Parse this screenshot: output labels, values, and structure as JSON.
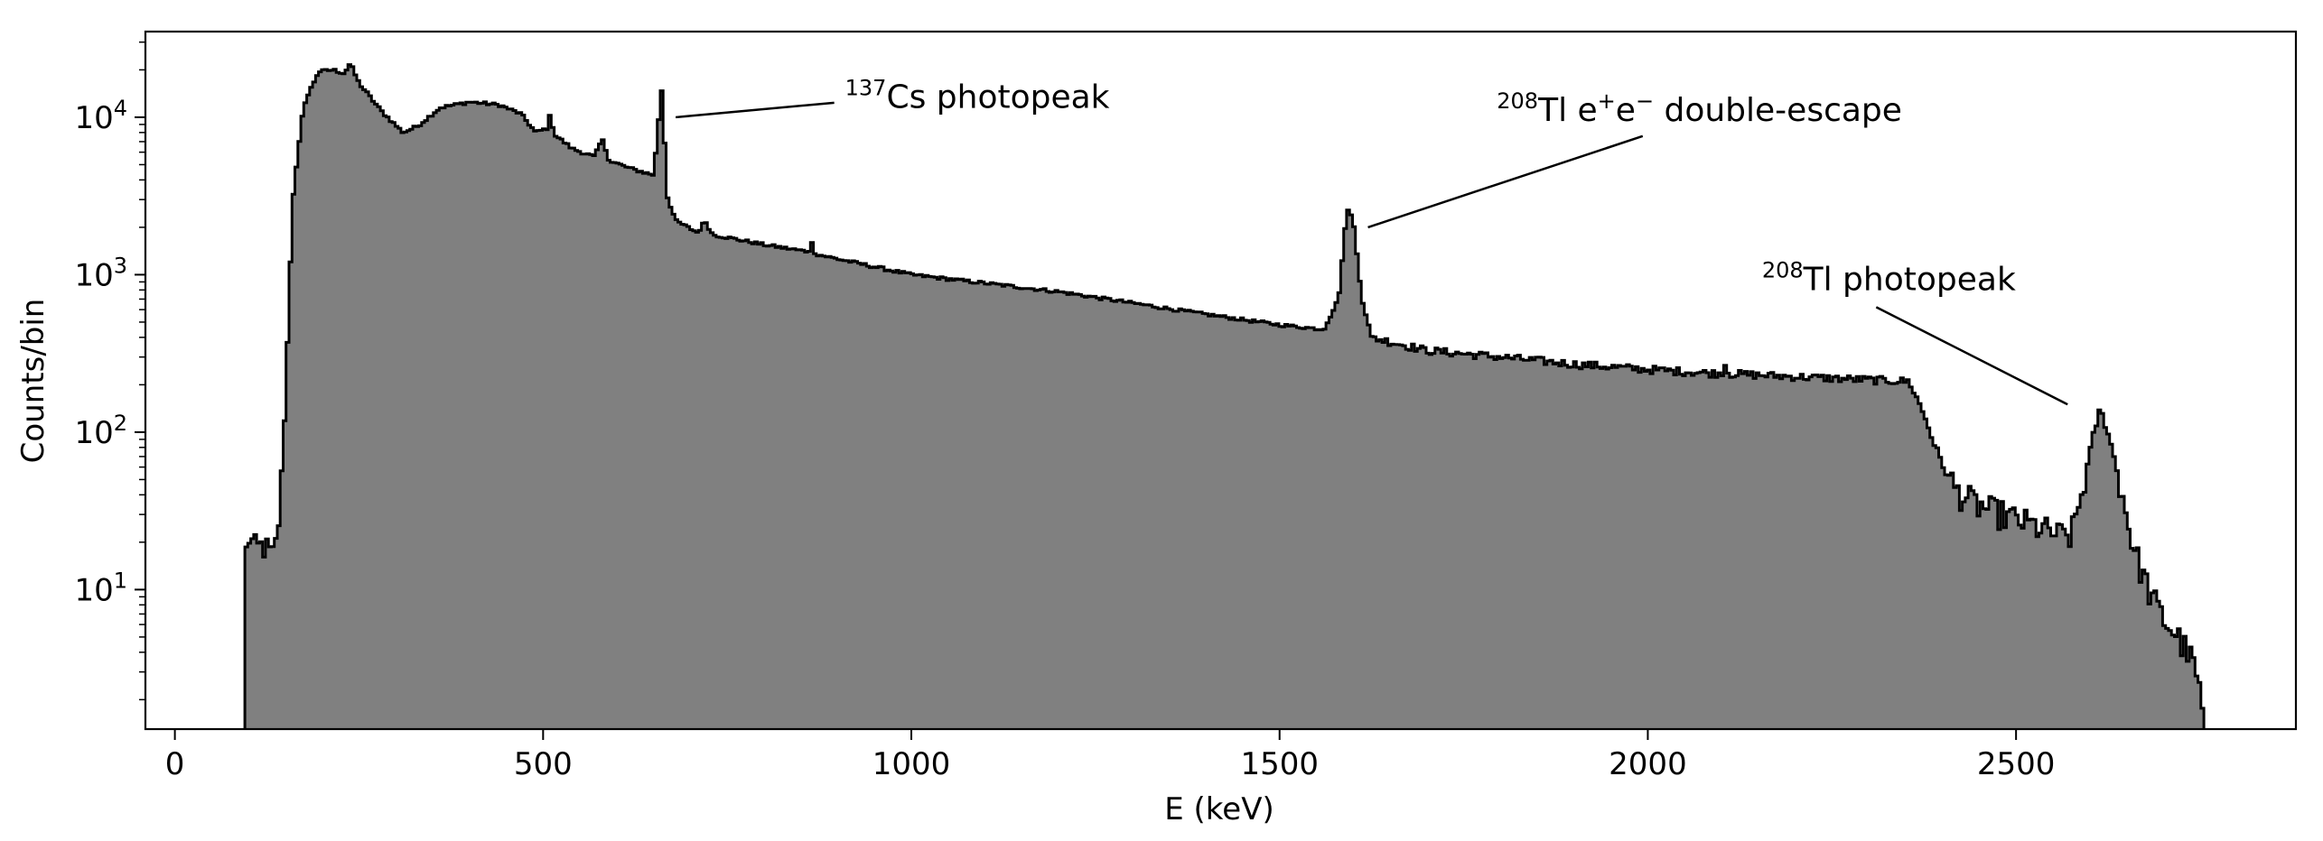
{
  "chart_data": {
    "type": "histogram",
    "xlabel": "E (keV)",
    "ylabel": "Counts/bin",
    "xlim": [
      -40,
      2880
    ],
    "ylim": [
      1.3,
      35000
    ],
    "yscale": "log",
    "grid": false,
    "fill_color": "#808080",
    "edge_color": "#000000",
    "x_ticks": [
      {
        "value": 0,
        "label": "0"
      },
      {
        "value": 500,
        "label": "500"
      },
      {
        "value": 1000,
        "label": "1000"
      },
      {
        "value": 1500,
        "label": "1500"
      },
      {
        "value": 2000,
        "label": "2000"
      },
      {
        "value": 2500,
        "label": "2500"
      }
    ],
    "y_ticks": [
      {
        "value": 10,
        "base": "10",
        "exp": "1"
      },
      {
        "value": 100,
        "base": "10",
        "exp": "2"
      },
      {
        "value": 1000,
        "base": "10",
        "exp": "3"
      },
      {
        "value": 10000,
        "base": "10",
        "exp": "4"
      }
    ],
    "spectrum_envelope": [
      [
        95,
        15
      ],
      [
        100,
        22
      ],
      [
        110,
        18
      ],
      [
        120,
        19
      ],
      [
        135,
        16
      ],
      [
        142,
        30
      ],
      [
        150,
        150
      ],
      [
        160,
        3000
      ],
      [
        175,
        12000
      ],
      [
        195,
        19500
      ],
      [
        215,
        20000
      ],
      [
        230,
        19000
      ],
      [
        238,
        22000
      ],
      [
        250,
        16500
      ],
      [
        280,
        11000
      ],
      [
        310,
        8000
      ],
      [
        330,
        8800
      ],
      [
        360,
        11500
      ],
      [
        400,
        12500
      ],
      [
        440,
        12000
      ],
      [
        470,
        10500
      ],
      [
        490,
        8000
      ],
      [
        505,
        8500
      ],
      [
        510,
        10500
      ],
      [
        515,
        7800
      ],
      [
        540,
        6300
      ],
      [
        570,
        5600
      ],
      [
        580,
        7300
      ],
      [
        590,
        5300
      ],
      [
        620,
        4700
      ],
      [
        650,
        4300
      ],
      [
        656,
        8000
      ],
      [
        660,
        17500
      ],
      [
        664,
        9000
      ],
      [
        668,
        3200
      ],
      [
        680,
        2200
      ],
      [
        710,
        1850
      ],
      [
        720,
        2200
      ],
      [
        730,
        1800
      ],
      [
        800,
        1550
      ],
      [
        860,
        1400
      ],
      [
        865,
        1580
      ],
      [
        870,
        1350
      ],
      [
        1000,
        1000
      ],
      [
        1200,
        780
      ],
      [
        1400,
        560
      ],
      [
        1500,
        480
      ],
      [
        1560,
        450
      ],
      [
        1580,
        700
      ],
      [
        1592,
        2700
      ],
      [
        1600,
        2200
      ],
      [
        1612,
        700
      ],
      [
        1625,
        400
      ],
      [
        1700,
        330
      ],
      [
        1800,
        300
      ],
      [
        1900,
        270
      ],
      [
        2000,
        250
      ],
      [
        2100,
        235
      ],
      [
        2105,
        270
      ],
      [
        2110,
        235
      ],
      [
        2200,
        225
      ],
      [
        2300,
        215
      ],
      [
        2355,
        210
      ],
      [
        2375,
        130
      ],
      [
        2385,
        95
      ],
      [
        2400,
        62
      ],
      [
        2420,
        42
      ],
      [
        2450,
        34
      ],
      [
        2500,
        28
      ],
      [
        2560,
        22
      ],
      [
        2575,
        22
      ],
      [
        2590,
        42
      ],
      [
        2605,
        95
      ],
      [
        2614,
        140
      ],
      [
        2625,
        100
      ],
      [
        2640,
        50
      ],
      [
        2660,
        18
      ],
      [
        2680,
        10
      ],
      [
        2700,
        6.5
      ],
      [
        2720,
        5
      ],
      [
        2740,
        3.5
      ],
      [
        2752,
        2
      ],
      [
        2755,
        1.3
      ]
    ],
    "annotations": [
      {
        "sup": "137",
        "text": "Cs photopeak",
        "text_at": [
          910,
          11500
        ],
        "arrow_tip": [
          680,
          10000
        ]
      },
      {
        "sup": "208",
        "text": "Tl e",
        "sup2": "+",
        "text2": "e",
        "sup3": "−",
        "text3": " double-escape",
        "text_at": [
          1795,
          9500
        ],
        "arrow_tip": [
          1620,
          2000
        ]
      },
      {
        "sup": "208",
        "text": "Tl photopeak",
        "text_at": [
          2155,
          800
        ],
        "arrow_tip": [
          2570,
          150
        ]
      }
    ]
  }
}
